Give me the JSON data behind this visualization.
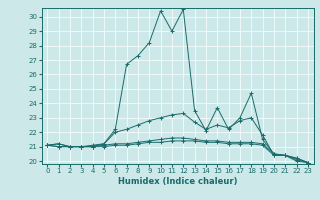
{
  "title": "",
  "xlabel": "Humidex (Indice chaleur)",
  "background_color": "#cce8e8",
  "grid_color": "#ffffff",
  "line_color": "#1a6b6b",
  "xlim": [
    -0.5,
    23.5
  ],
  "ylim": [
    19.8,
    30.6
  ],
  "yticks": [
    20,
    21,
    22,
    23,
    24,
    25,
    26,
    27,
    28,
    29,
    30
  ],
  "xticks": [
    0,
    1,
    2,
    3,
    4,
    5,
    6,
    7,
    8,
    9,
    10,
    11,
    12,
    13,
    14,
    15,
    16,
    17,
    18,
    19,
    20,
    21,
    22,
    23
  ],
  "series": [
    [
      21.1,
      21.2,
      21.0,
      21.0,
      21.0,
      21.2,
      22.2,
      26.7,
      27.3,
      28.2,
      30.4,
      29.0,
      30.5,
      23.5,
      22.1,
      23.7,
      22.2,
      23.0,
      24.7,
      21.5,
      20.5,
      20.4,
      20.0,
      19.9
    ],
    [
      21.1,
      21.2,
      21.0,
      21.0,
      21.1,
      21.2,
      22.0,
      22.2,
      22.5,
      22.8,
      23.0,
      23.2,
      23.3,
      22.7,
      22.2,
      22.5,
      22.3,
      22.8,
      23.0,
      21.8,
      20.4,
      20.4,
      20.1,
      19.9
    ],
    [
      21.1,
      21.0,
      21.0,
      21.0,
      21.0,
      21.1,
      21.2,
      21.2,
      21.3,
      21.4,
      21.5,
      21.6,
      21.6,
      21.5,
      21.4,
      21.4,
      21.3,
      21.3,
      21.3,
      21.2,
      20.5,
      20.4,
      20.2,
      19.9
    ],
    [
      21.1,
      21.0,
      21.0,
      21.0,
      21.0,
      21.0,
      21.1,
      21.1,
      21.2,
      21.3,
      21.3,
      21.4,
      21.4,
      21.4,
      21.3,
      21.3,
      21.2,
      21.2,
      21.2,
      21.1,
      20.4,
      20.4,
      20.2,
      19.9
    ]
  ]
}
